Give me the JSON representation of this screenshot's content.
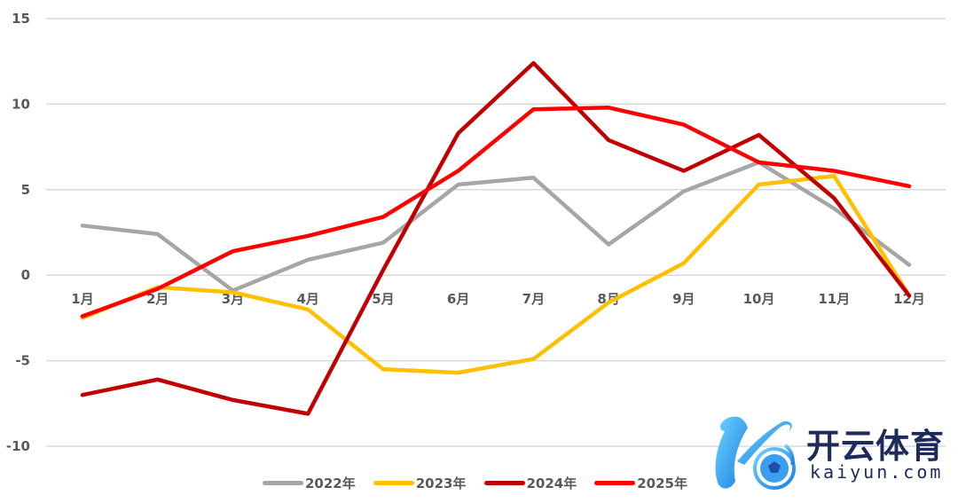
{
  "chart_data": {
    "type": "line",
    "title": "",
    "xlabel": "",
    "ylabel": "",
    "categories": [
      "1月",
      "2月",
      "3月",
      "4月",
      "5月",
      "6月",
      "7月",
      "8月",
      "9月",
      "10月",
      "11月",
      "12月"
    ],
    "ylim": [
      -10,
      15
    ],
    "yticks": [
      15,
      10,
      5,
      0,
      -5,
      -10
    ],
    "grid": true,
    "legend_position": "bottom",
    "series": [
      {
        "name": "2022年",
        "color": "#a6a6a6",
        "values": [
          2.9,
          2.4,
          -0.9,
          0.9,
          1.9,
          5.3,
          5.7,
          1.8,
          4.9,
          6.6,
          3.9,
          0.6
        ]
      },
      {
        "name": "2023年",
        "color": "#ffc000",
        "values": [
          -2.5,
          -0.7,
          -1.0,
          -2.0,
          -5.5,
          -5.7,
          -4.9,
          -1.6,
          0.7,
          5.3,
          5.8,
          -1.2
        ]
      },
      {
        "name": "2024年",
        "color": "#c00000",
        "values": [
          -7.0,
          -6.1,
          -7.3,
          -8.1,
          0.3,
          8.3,
          12.4,
          7.9,
          6.1,
          8.2,
          4.5,
          -1.2
        ]
      },
      {
        "name": "2025年",
        "color": "#ff0000",
        "values": [
          -2.4,
          -0.8,
          1.4,
          2.3,
          3.4,
          6.1,
          9.7,
          9.8,
          8.8,
          6.6,
          6.1,
          5.2
        ]
      }
    ]
  },
  "legend": {
    "items": [
      {
        "label": "2022年",
        "color": "#a6a6a6"
      },
      {
        "label": "2023年",
        "color": "#ffc000"
      },
      {
        "label": "2024年",
        "color": "#c00000"
      },
      {
        "label": "2025年",
        "color": "#ff0000"
      }
    ]
  },
  "watermark": {
    "title": "开云体育",
    "subtitle": "kaiyun.com",
    "brand_color": "#1d2a5c",
    "accent_color": "#2aa8f0"
  }
}
